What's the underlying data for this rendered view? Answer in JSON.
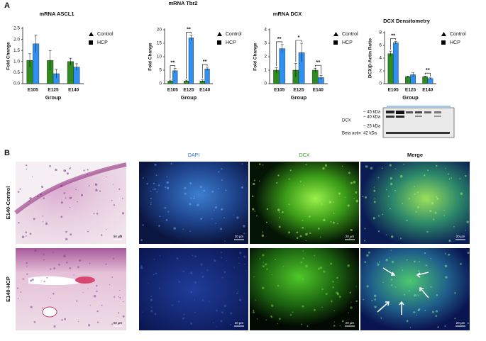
{
  "chart_data": [
    {
      "type": "bar",
      "title": "mRNA ASCL1",
      "y_label": "Fold Change",
      "x_label": "Group",
      "categories": [
        "E105",
        "E125",
        "E140"
      ],
      "series": [
        {
          "name": "Control",
          "color": "#2f8a1f",
          "values": [
            1.05,
            1.05,
            1.0
          ],
          "errors": [
            0.3,
            0.45,
            0.15
          ]
        },
        {
          "name": "HCP",
          "color": "#2f90f0",
          "values": [
            1.8,
            0.45,
            0.75
          ],
          "errors": [
            0.4,
            0.2,
            0.15
          ]
        }
      ],
      "ylim": [
        0,
        2.5
      ],
      "yticks": [
        {
          "value": 0,
          "label": "0.0"
        },
        0.5,
        {
          "value": 1,
          "label": "1.0"
        },
        1.5,
        {
          "value": 2,
          "label": "2.0"
        },
        2.5
      ]
    },
    {
      "type": "bar",
      "title": "mRNA Tbr2",
      "y_label": "Fold Change",
      "x_label": "Group",
      "categories": [
        "E105",
        "E125",
        "E140"
      ],
      "series": [
        {
          "name": "Control",
          "color": "#2f8a1f",
          "values": [
            1,
            1,
            1
          ],
          "errors": [
            0.3,
            0.3,
            0.4
          ]
        },
        {
          "name": "HCP",
          "color": "#2f90f0",
          "values": [
            4.8,
            17,
            5.5
          ],
          "errors": [
            0.8,
            1.0,
            0.6
          ]
        }
      ],
      "significance": [
        "**",
        "**",
        "**"
      ],
      "ylim": [
        0,
        20
      ],
      "yticks": [
        0,
        5,
        10,
        15,
        20
      ]
    },
    {
      "type": "bar",
      "title": "mRNA DCX",
      "y_label": "Fold Change",
      "x_label": "Group",
      "categories": [
        "E105",
        "E125",
        "E140"
      ],
      "series": [
        {
          "name": "Control",
          "color": "#2f8a1f",
          "values": [
            1,
            1,
            1
          ],
          "errors": [
            0.2,
            0.5,
            0.15
          ]
        },
        {
          "name": "HCP",
          "color": "#2f90f0",
          "values": [
            2.6,
            2.3,
            0.45
          ],
          "errors": [
            0.3,
            0.7,
            0.15
          ]
        }
      ],
      "significance": [
        "**",
        "*",
        "**"
      ],
      "ylim": [
        0,
        4
      ],
      "yticks": [
        0,
        1,
        2,
        3,
        4
      ]
    },
    {
      "type": "bar",
      "title": "DCX Densitometry",
      "y_label": "DCX/β-Actin Ratio",
      "x_label": "Group",
      "categories": [
        "E105",
        "E125",
        "E140"
      ],
      "series": [
        {
          "name": "Control",
          "color": "#2f8a1f",
          "values": [
            4.7,
            1.1,
            1.1
          ],
          "errors": [
            0.4,
            0.1,
            0.1
          ]
        },
        {
          "name": "HCP",
          "color": "#2f90f0",
          "values": [
            6.4,
            1.4,
            0.8
          ],
          "errors": [
            0.2,
            0.3,
            0.1
          ]
        }
      ],
      "significance": [
        "**",
        null,
        "**"
      ],
      "ylim": [
        0,
        8
      ],
      "yticks": [
        0,
        2,
        4,
        6,
        8
      ]
    }
  ],
  "panel_labels": [
    "A",
    "B"
  ],
  "blot": {
    "labels": [
      "~ 45 kDa",
      "~ 40 kDa",
      "DCX",
      "~ 25 kDa",
      "Beta actin",
      "42 kDa"
    ]
  },
  "images": {
    "columns": [
      "DAPI",
      "DCX",
      "Merge"
    ],
    "rows": [
      "E140-Control",
      "E140-HCP"
    ],
    "scale_he": "50 µm",
    "scale_fl": "20 µm"
  }
}
